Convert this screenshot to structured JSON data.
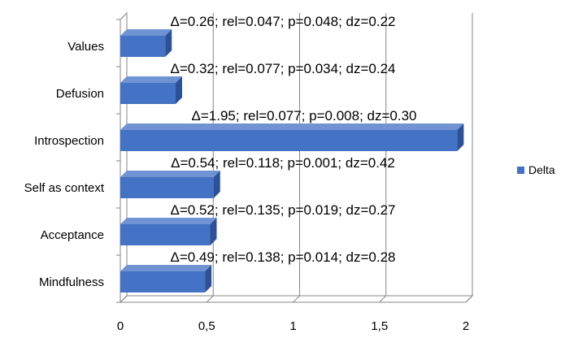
{
  "chart_data": {
    "type": "bar",
    "orientation": "horizontal",
    "categories": [
      "Values",
      "Defusion",
      "Introspection",
      "Self as context",
      "Acceptance",
      "Mindfulness"
    ],
    "series": [
      {
        "name": "Delta",
        "values": [
          0.26,
          0.32,
          1.95,
          0.54,
          0.52,
          0.49
        ],
        "color": "#4472C4"
      }
    ],
    "data_labels": [
      "Δ=0.26; rel=0.047; p=0.048; dz=0.22",
      "Δ=0.32; rel=0.077; p=0.034; dz=0.24",
      "Δ=1.95; rel=0.077; p=0.008; dz=0.30",
      "Δ=0.54; rel=0.118; p=0.001; dz=0.42",
      "Δ=0.52; rel=0.135; p=0.019; dz=0.27",
      "Δ=0.49; rel=0.138; p=0.014; dz=0.28"
    ],
    "x_ticks": [
      {
        "value": 0,
        "label": "0"
      },
      {
        "value": 0.5,
        "label": "0,5"
      },
      {
        "value": 1,
        "label": "1"
      },
      {
        "value": 1.5,
        "label": "1,5"
      },
      {
        "value": 2,
        "label": "2"
      }
    ],
    "xlim": [
      0,
      2
    ],
    "grid": true,
    "style": "3d",
    "legend_position": "right",
    "title": "",
    "xlabel": "",
    "ylabel": ""
  }
}
